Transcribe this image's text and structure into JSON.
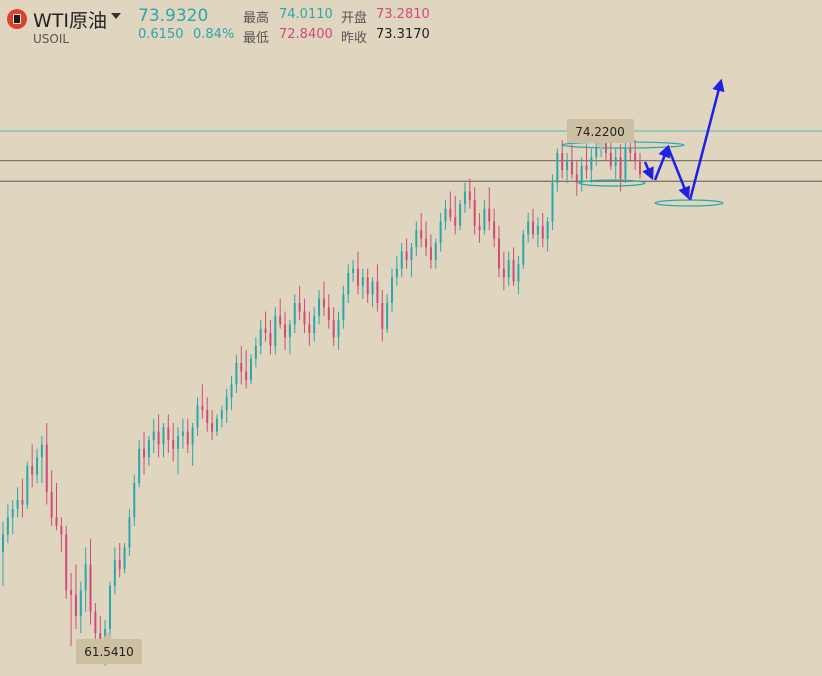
{
  "header": {
    "name": "WTI原油",
    "code": "USOIL",
    "price": "73.9320",
    "change": "0.6150",
    "change_pct": "0.84%",
    "high_label": "最高",
    "high": "74.0110",
    "open_label": "开盘",
    "open": "73.2810",
    "low_label": "最低",
    "low": "72.8400",
    "prev_close_label": "昨收",
    "prev_close": "73.3170"
  },
  "chart_data": {
    "type": "candlestick",
    "series": [],
    "annotations": {
      "max_label": "74.2200",
      "min_label": "61.5410"
    },
    "ylim": [
      61.3,
      75.9
    ],
    "colors": {
      "up": "#2aa7aa",
      "down": "#cf4c76",
      "arrow": "#1f1fe6",
      "background": "#e0d5bf"
    },
    "candles": [
      [
        64.2,
        64.9,
        63.4,
        64.6
      ],
      [
        64.6,
        65.3,
        64.4,
        65.0
      ],
      [
        65.0,
        65.4,
        64.6,
        65.2
      ],
      [
        65.2,
        65.7,
        65.0,
        65.4
      ],
      [
        65.4,
        65.9,
        65.0,
        65.3
      ],
      [
        65.3,
        66.3,
        65.2,
        66.2
      ],
      [
        66.2,
        66.7,
        65.7,
        66.0
      ],
      [
        66.0,
        66.6,
        65.8,
        66.4
      ],
      [
        66.4,
        66.9,
        65.8,
        66.7
      ],
      [
        66.7,
        67.2,
        65.3,
        65.6
      ],
      [
        65.6,
        66.1,
        64.8,
        65.0
      ],
      [
        65.0,
        65.8,
        64.7,
        64.8
      ],
      [
        64.8,
        65.0,
        64.2,
        64.6
      ],
      [
        64.6,
        64.8,
        63.1,
        63.3
      ],
      [
        63.3,
        63.7,
        62.0,
        63.2
      ],
      [
        63.2,
        63.9,
        62.4,
        62.7
      ],
      [
        62.7,
        63.5,
        62.3,
        63.3
      ],
      [
        63.3,
        64.3,
        62.8,
        63.9
      ],
      [
        63.9,
        64.5,
        62.5,
        62.8
      ],
      [
        62.8,
        63.0,
        61.9,
        62.3
      ],
      [
        62.3,
        62.7,
        61.8,
        62.1
      ],
      [
        62.1,
        62.6,
        61.54,
        62.4
      ],
      [
        62.4,
        63.5,
        62.2,
        63.4
      ],
      [
        63.4,
        64.3,
        63.2,
        64.0
      ],
      [
        64.0,
        64.4,
        63.6,
        63.8
      ],
      [
        63.8,
        64.4,
        63.7,
        64.3
      ],
      [
        64.3,
        65.2,
        64.1,
        65.0
      ],
      [
        65.0,
        66.0,
        64.8,
        65.8
      ],
      [
        65.8,
        66.8,
        65.7,
        66.6
      ],
      [
        66.6,
        67.0,
        66.0,
        66.4
      ],
      [
        66.4,
        66.9,
        66.2,
        66.8
      ],
      [
        66.8,
        67.3,
        66.5,
        67.0
      ],
      [
        67.0,
        67.4,
        66.4,
        66.7
      ],
      [
        66.7,
        67.2,
        66.4,
        67.1
      ],
      [
        67.1,
        67.4,
        66.5,
        66.8
      ],
      [
        66.8,
        67.2,
        66.3,
        66.6
      ],
      [
        66.6,
        67.1,
        66.0,
        66.9
      ],
      [
        66.9,
        67.3,
        66.6,
        67.0
      ],
      [
        67.0,
        67.3,
        66.5,
        66.7
      ],
      [
        66.7,
        67.2,
        66.2,
        67.1
      ],
      [
        67.1,
        67.8,
        66.9,
        67.6
      ],
      [
        67.6,
        68.1,
        67.3,
        67.5
      ],
      [
        67.5,
        67.8,
        67.0,
        67.2
      ],
      [
        67.2,
        67.5,
        66.8,
        67.0
      ],
      [
        67.0,
        67.4,
        66.9,
        67.3
      ],
      [
        67.3,
        67.6,
        67.1,
        67.5
      ],
      [
        67.5,
        68.0,
        67.2,
        67.8
      ],
      [
        67.8,
        68.3,
        67.5,
        68.1
      ],
      [
        68.1,
        68.8,
        67.9,
        68.6
      ],
      [
        68.6,
        69.0,
        68.1,
        68.4
      ],
      [
        68.4,
        68.9,
        68.0,
        68.2
      ],
      [
        68.2,
        68.8,
        68.1,
        68.7
      ],
      [
        68.7,
        69.2,
        68.5,
        69.0
      ],
      [
        69.0,
        69.6,
        68.8,
        69.4
      ],
      [
        69.4,
        69.8,
        69.1,
        69.3
      ],
      [
        69.3,
        69.6,
        68.8,
        69.0
      ],
      [
        69.0,
        69.9,
        68.8,
        69.7
      ],
      [
        69.7,
        70.1,
        69.4,
        69.5
      ],
      [
        69.5,
        69.8,
        68.9,
        69.2
      ],
      [
        69.2,
        69.6,
        68.8,
        69.5
      ],
      [
        69.5,
        70.2,
        69.3,
        70.0
      ],
      [
        70.0,
        70.4,
        69.6,
        69.8
      ],
      [
        69.8,
        70.1,
        69.3,
        69.5
      ],
      [
        69.5,
        69.8,
        69.0,
        69.3
      ],
      [
        69.3,
        69.9,
        69.1,
        69.7
      ],
      [
        69.7,
        70.3,
        69.5,
        70.1
      ],
      [
        70.1,
        70.5,
        69.7,
        69.9
      ],
      [
        69.9,
        70.2,
        69.4,
        69.6
      ],
      [
        69.6,
        69.9,
        69.0,
        69.2
      ],
      [
        69.2,
        69.8,
        68.9,
        69.6
      ],
      [
        69.6,
        70.4,
        69.4,
        70.2
      ],
      [
        70.2,
        70.9,
        70.0,
        70.7
      ],
      [
        70.7,
        71.0,
        70.5,
        70.8
      ],
      [
        70.8,
        71.2,
        70.2,
        70.4
      ],
      [
        70.4,
        70.8,
        70.1,
        70.6
      ],
      [
        70.6,
        70.8,
        70.0,
        70.2
      ],
      [
        70.2,
        70.6,
        69.9,
        70.5
      ],
      [
        70.5,
        70.9,
        69.8,
        70.0
      ],
      [
        70.0,
        70.3,
        69.1,
        69.4
      ],
      [
        69.4,
        70.2,
        69.3,
        70.0
      ],
      [
        70.0,
        70.8,
        69.8,
        70.6
      ],
      [
        70.6,
        71.1,
        70.4,
        70.8
      ],
      [
        70.8,
        71.4,
        70.6,
        71.2
      ],
      [
        71.2,
        71.5,
        70.8,
        71.0
      ],
      [
        71.0,
        71.4,
        70.6,
        71.3
      ],
      [
        71.3,
        71.9,
        71.1,
        71.7
      ],
      [
        71.7,
        72.1,
        71.3,
        71.5
      ],
      [
        71.5,
        71.9,
        71.1,
        71.3
      ],
      [
        71.3,
        71.6,
        70.8,
        71.0
      ],
      [
        71.0,
        71.5,
        70.8,
        71.4
      ],
      [
        71.4,
        72.1,
        71.2,
        71.9
      ],
      [
        71.9,
        72.4,
        71.7,
        72.2
      ],
      [
        72.2,
        72.6,
        71.9,
        72.0
      ],
      [
        72.0,
        72.5,
        71.6,
        71.8
      ],
      [
        71.8,
        72.4,
        71.7,
        72.3
      ],
      [
        72.3,
        72.8,
        72.1,
        72.6
      ],
      [
        72.6,
        72.9,
        72.2,
        72.4
      ],
      [
        72.4,
        72.7,
        71.6,
        71.8
      ],
      [
        71.8,
        72.1,
        71.4,
        71.7
      ],
      [
        71.7,
        72.4,
        71.6,
        72.2
      ],
      [
        72.2,
        72.7,
        71.7,
        71.9
      ],
      [
        71.9,
        72.2,
        71.3,
        71.5
      ],
      [
        71.5,
        71.8,
        70.6,
        70.8
      ],
      [
        70.8,
        71.2,
        70.3,
        70.6
      ],
      [
        70.6,
        71.2,
        70.4,
        71.0
      ],
      [
        71.0,
        71.3,
        70.4,
        70.5
      ],
      [
        70.5,
        71.1,
        70.2,
        70.9
      ],
      [
        70.9,
        71.7,
        70.8,
        71.6
      ],
      [
        71.6,
        72.1,
        71.4,
        71.9
      ],
      [
        71.9,
        72.2,
        71.5,
        71.6
      ],
      [
        71.6,
        72.0,
        71.3,
        71.8
      ],
      [
        71.8,
        72.1,
        71.3,
        71.5
      ],
      [
        71.5,
        72.0,
        71.2,
        71.9
      ],
      [
        71.9,
        73.0,
        71.7,
        72.8
      ],
      [
        72.8,
        73.6,
        72.6,
        73.5
      ],
      [
        73.5,
        73.8,
        72.9,
        73.1
      ],
      [
        73.1,
        73.5,
        72.8,
        73.3
      ],
      [
        73.3,
        73.7,
        72.9,
        73.0
      ],
      [
        73.0,
        73.3,
        72.5,
        72.8
      ],
      [
        72.8,
        73.4,
        72.6,
        73.2
      ],
      [
        73.2,
        73.7,
        72.9,
        73.1
      ],
      [
        73.1,
        73.6,
        72.8,
        73.4
      ],
      [
        73.4,
        73.8,
        73.2,
        73.6
      ],
      [
        73.6,
        74.22,
        73.4,
        73.8
      ],
      [
        73.8,
        74.0,
        73.3,
        73.5
      ],
      [
        73.5,
        73.8,
        73.1,
        73.2
      ],
      [
        73.2,
        73.6,
        72.9,
        73.4
      ],
      [
        73.4,
        73.7,
        72.6,
        72.9
      ],
      [
        72.9,
        73.8,
        72.8,
        73.6
      ],
      [
        73.6,
        73.9,
        73.3,
        73.5
      ],
      [
        73.5,
        73.8,
        73.1,
        73.3
      ],
      [
        73.3,
        73.5,
        72.9,
        73.0
      ]
    ]
  }
}
